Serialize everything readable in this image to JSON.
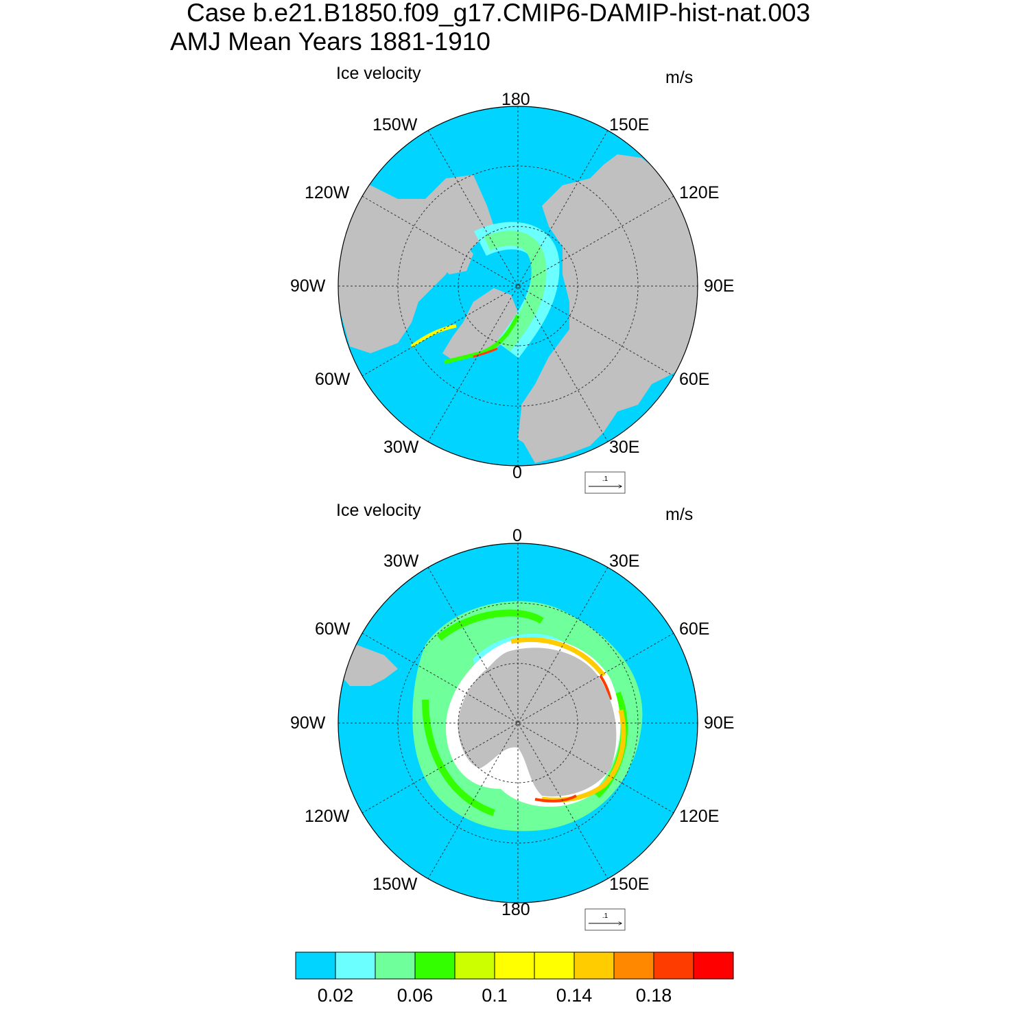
{
  "title": {
    "line1": "Case b.e21.B1850.f09_g17.CMIP6-DAMIP-hist-nat.003",
    "line2": "AMJ Mean   Years 1881-1910"
  },
  "panels": [
    {
      "id": "north",
      "left_label": "Ice velocity",
      "right_label": "m/s",
      "lon_labels": {
        "top": "180",
        "top_left": "150W",
        "top_right": "150E",
        "upper_left": "120W",
        "upper_right": "120E",
        "left": "90W",
        "right": "90E",
        "lower_left": "60W",
        "lower_right": "60E",
        "bottom_left": "30W",
        "bottom_right": "30E",
        "bottom": "0"
      },
      "ref_vector_label": ".1"
    },
    {
      "id": "south",
      "left_label": "Ice velocity",
      "right_label": "m/s",
      "lon_labels": {
        "top": "0",
        "top_left": "30W",
        "top_right": "30E",
        "upper_left": "60W",
        "upper_right": "60E",
        "left": "90W",
        "right": "90E",
        "lower_left": "120W",
        "lower_right": "120E",
        "bottom_left": "150W",
        "bottom_right": "150E",
        "bottom": "180"
      },
      "ref_vector_label": ".1"
    }
  ],
  "colorbar": {
    "colors": [
      "#00d4ff",
      "#6bffff",
      "#6fff9b",
      "#33ff00",
      "#ccff00",
      "#ffff00",
      "#ffff00",
      "#ffcc00",
      "#ff8800",
      "#ff3c00",
      "#ff0000"
    ],
    "tick_labels": [
      "0.02",
      "0.06",
      "0.1",
      "0.14",
      "0.18"
    ]
  },
  "colors": {
    "ocean": "#00d4ff",
    "land": "#c0c0c0"
  }
}
